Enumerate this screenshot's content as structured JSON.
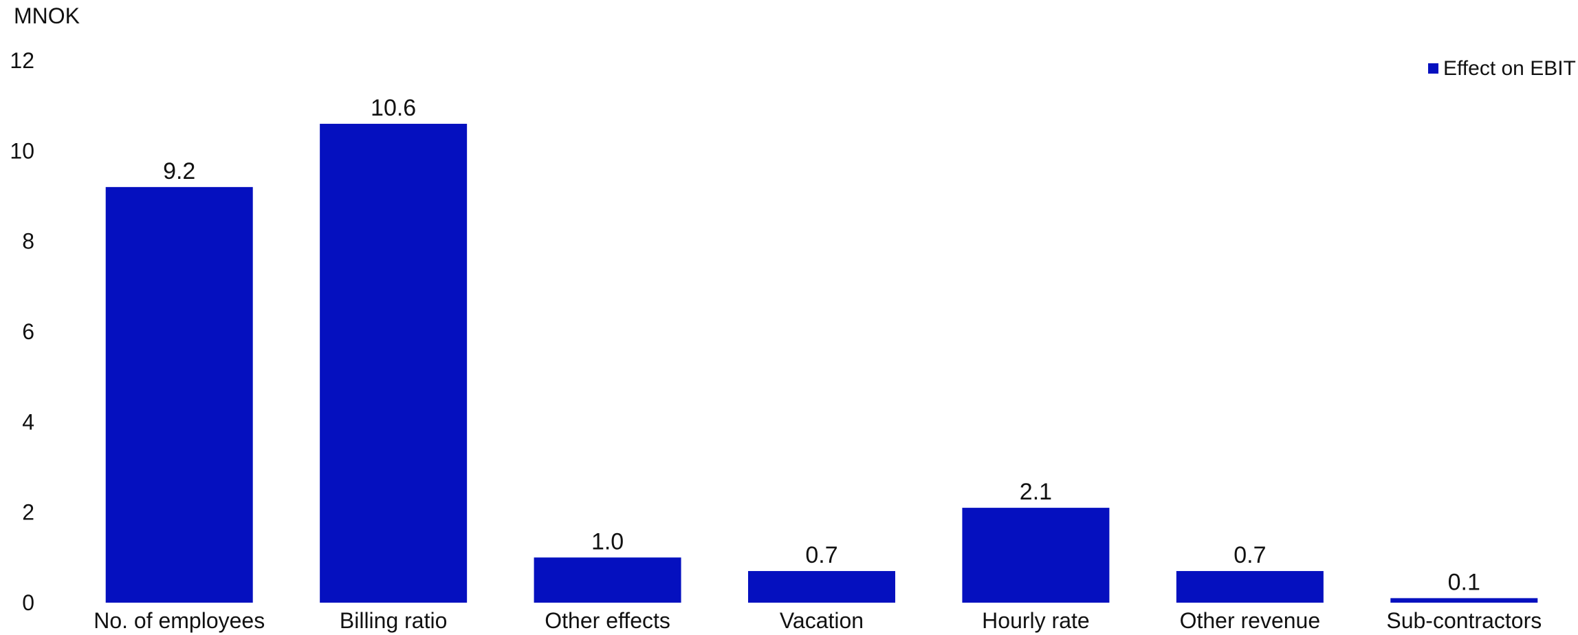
{
  "chart_data": {
    "type": "bar",
    "title": "",
    "xlabel": "",
    "ylabel": "MNOK",
    "ylim": [
      0,
      12
    ],
    "yticks": [
      0,
      2,
      4,
      6,
      8,
      10,
      12
    ],
    "grid": false,
    "legend_position": "top-right",
    "categories": [
      "No. of employees",
      "Billing ratio",
      "Other effects",
      "Vacation",
      "Hourly rate",
      "Other revenue",
      "Sub-contractors"
    ],
    "series": [
      {
        "name": "Effect on EBIT",
        "color": "#0510BF",
        "values": [
          9.2,
          10.6,
          1.0,
          0.7,
          2.1,
          0.7,
          0.1
        ],
        "labels": [
          "9.2",
          "10.6",
          "1.0",
          "0.7",
          "2.1",
          "0.7",
          "0.1"
        ]
      }
    ]
  }
}
